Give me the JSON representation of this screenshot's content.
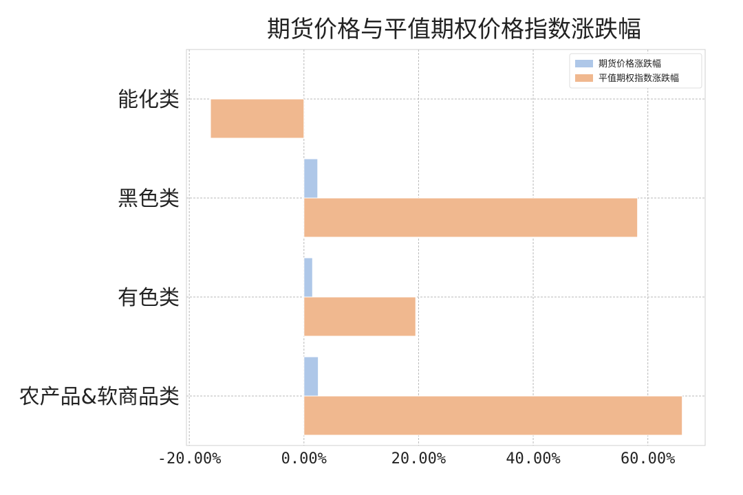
{
  "chart_data": {
    "type": "bar",
    "orientation": "horizontal",
    "title": "期货价格与平值期权价格指数涨跌幅",
    "xlabel": "",
    "ylabel": "",
    "categories": [
      "农产品&软商品类",
      "有色类",
      "黑色类",
      "能化类"
    ],
    "series": [
      {
        "name": "期货价格涨跌幅",
        "color": "#aec7e8",
        "values": [
          2.5,
          1.5,
          2.4,
          0.0
        ]
      },
      {
        "name": "平值期权指数涨跌幅",
        "color": "#f0b88f",
        "values": [
          66.0,
          19.5,
          58.2,
          -16.3
        ]
      }
    ],
    "xlim": [
      -20.5,
      70.0
    ],
    "xticks": [
      -20,
      0,
      20,
      40,
      60
    ],
    "xtick_labels": [
      "-20.00%",
      "0.00%",
      "20.00%",
      "40.00%",
      "60.00%"
    ],
    "value_unit": "%",
    "grid": true,
    "legend_position": "top-right"
  }
}
